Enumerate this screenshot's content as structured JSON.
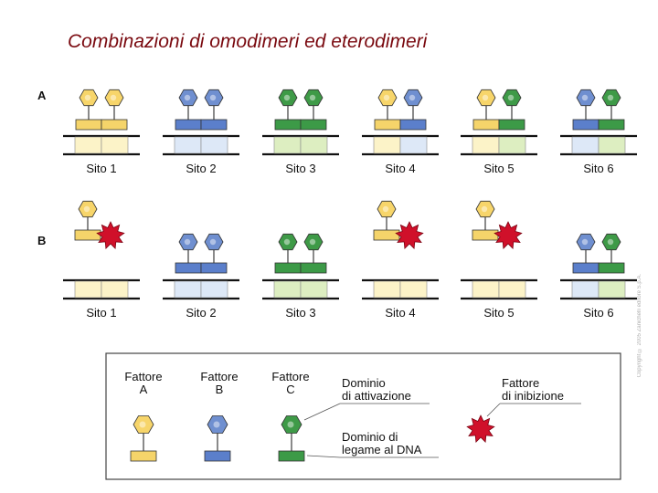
{
  "title": "Combinazioni di omodimeri ed eterodimeri",
  "rows": {
    "a": {
      "label": "A",
      "sites": [
        {
          "label": "Sito 1",
          "factors": [
            "A",
            "A"
          ]
        },
        {
          "label": "Sito 2",
          "factors": [
            "B",
            "B"
          ]
        },
        {
          "label": "Sito 3",
          "factors": [
            "C",
            "C"
          ]
        },
        {
          "label": "Sito 4",
          "factors": [
            "A",
            "B"
          ]
        },
        {
          "label": "Sito 5",
          "factors": [
            "A",
            "C"
          ]
        },
        {
          "label": "Sito 6",
          "factors": [
            "B",
            "C"
          ]
        }
      ]
    },
    "b": {
      "label": "B",
      "sites": [
        {
          "label": "Sito 1",
          "factors": [
            "A",
            "inhibitor"
          ]
        },
        {
          "label": "Sito 2",
          "factors": [
            "B",
            "B"
          ]
        },
        {
          "label": "Sito 3",
          "factors": [
            "C",
            "C"
          ]
        },
        {
          "label": "Sito 4",
          "factors": [
            "A",
            "inhibitor"
          ]
        },
        {
          "label": "Sito 5",
          "factors": [
            "A",
            "inhibitor"
          ]
        },
        {
          "label": "Sito 6",
          "factors": [
            "B",
            "C"
          ]
        }
      ]
    }
  },
  "legend": {
    "factor_a": [
      "Fattore",
      "A"
    ],
    "factor_b": [
      "Fattore",
      "B"
    ],
    "factor_c": [
      "Fattore",
      "C"
    ],
    "activation_domain": [
      "Dominio",
      "di attivazione"
    ],
    "binding_domain": [
      "Dominio di",
      "legame al DNA"
    ],
    "inhibitor": [
      "Fattore",
      "di inibizione"
    ]
  },
  "colors": {
    "A": {
      "head": "#f7d56a",
      "bar": "#f5d46a",
      "light": "#fcf3c8"
    },
    "B": {
      "head": "#6f8fd0",
      "bar": "#5b7fcb",
      "light": "#dde8f7"
    },
    "C": {
      "head": "#3e9a47",
      "bar": "#3c9a47",
      "light": "#ddeec1"
    },
    "inhibitor": "#d0102a"
  },
  "credit": "Copyright © 2005 Zanichelli editore S.p.A."
}
